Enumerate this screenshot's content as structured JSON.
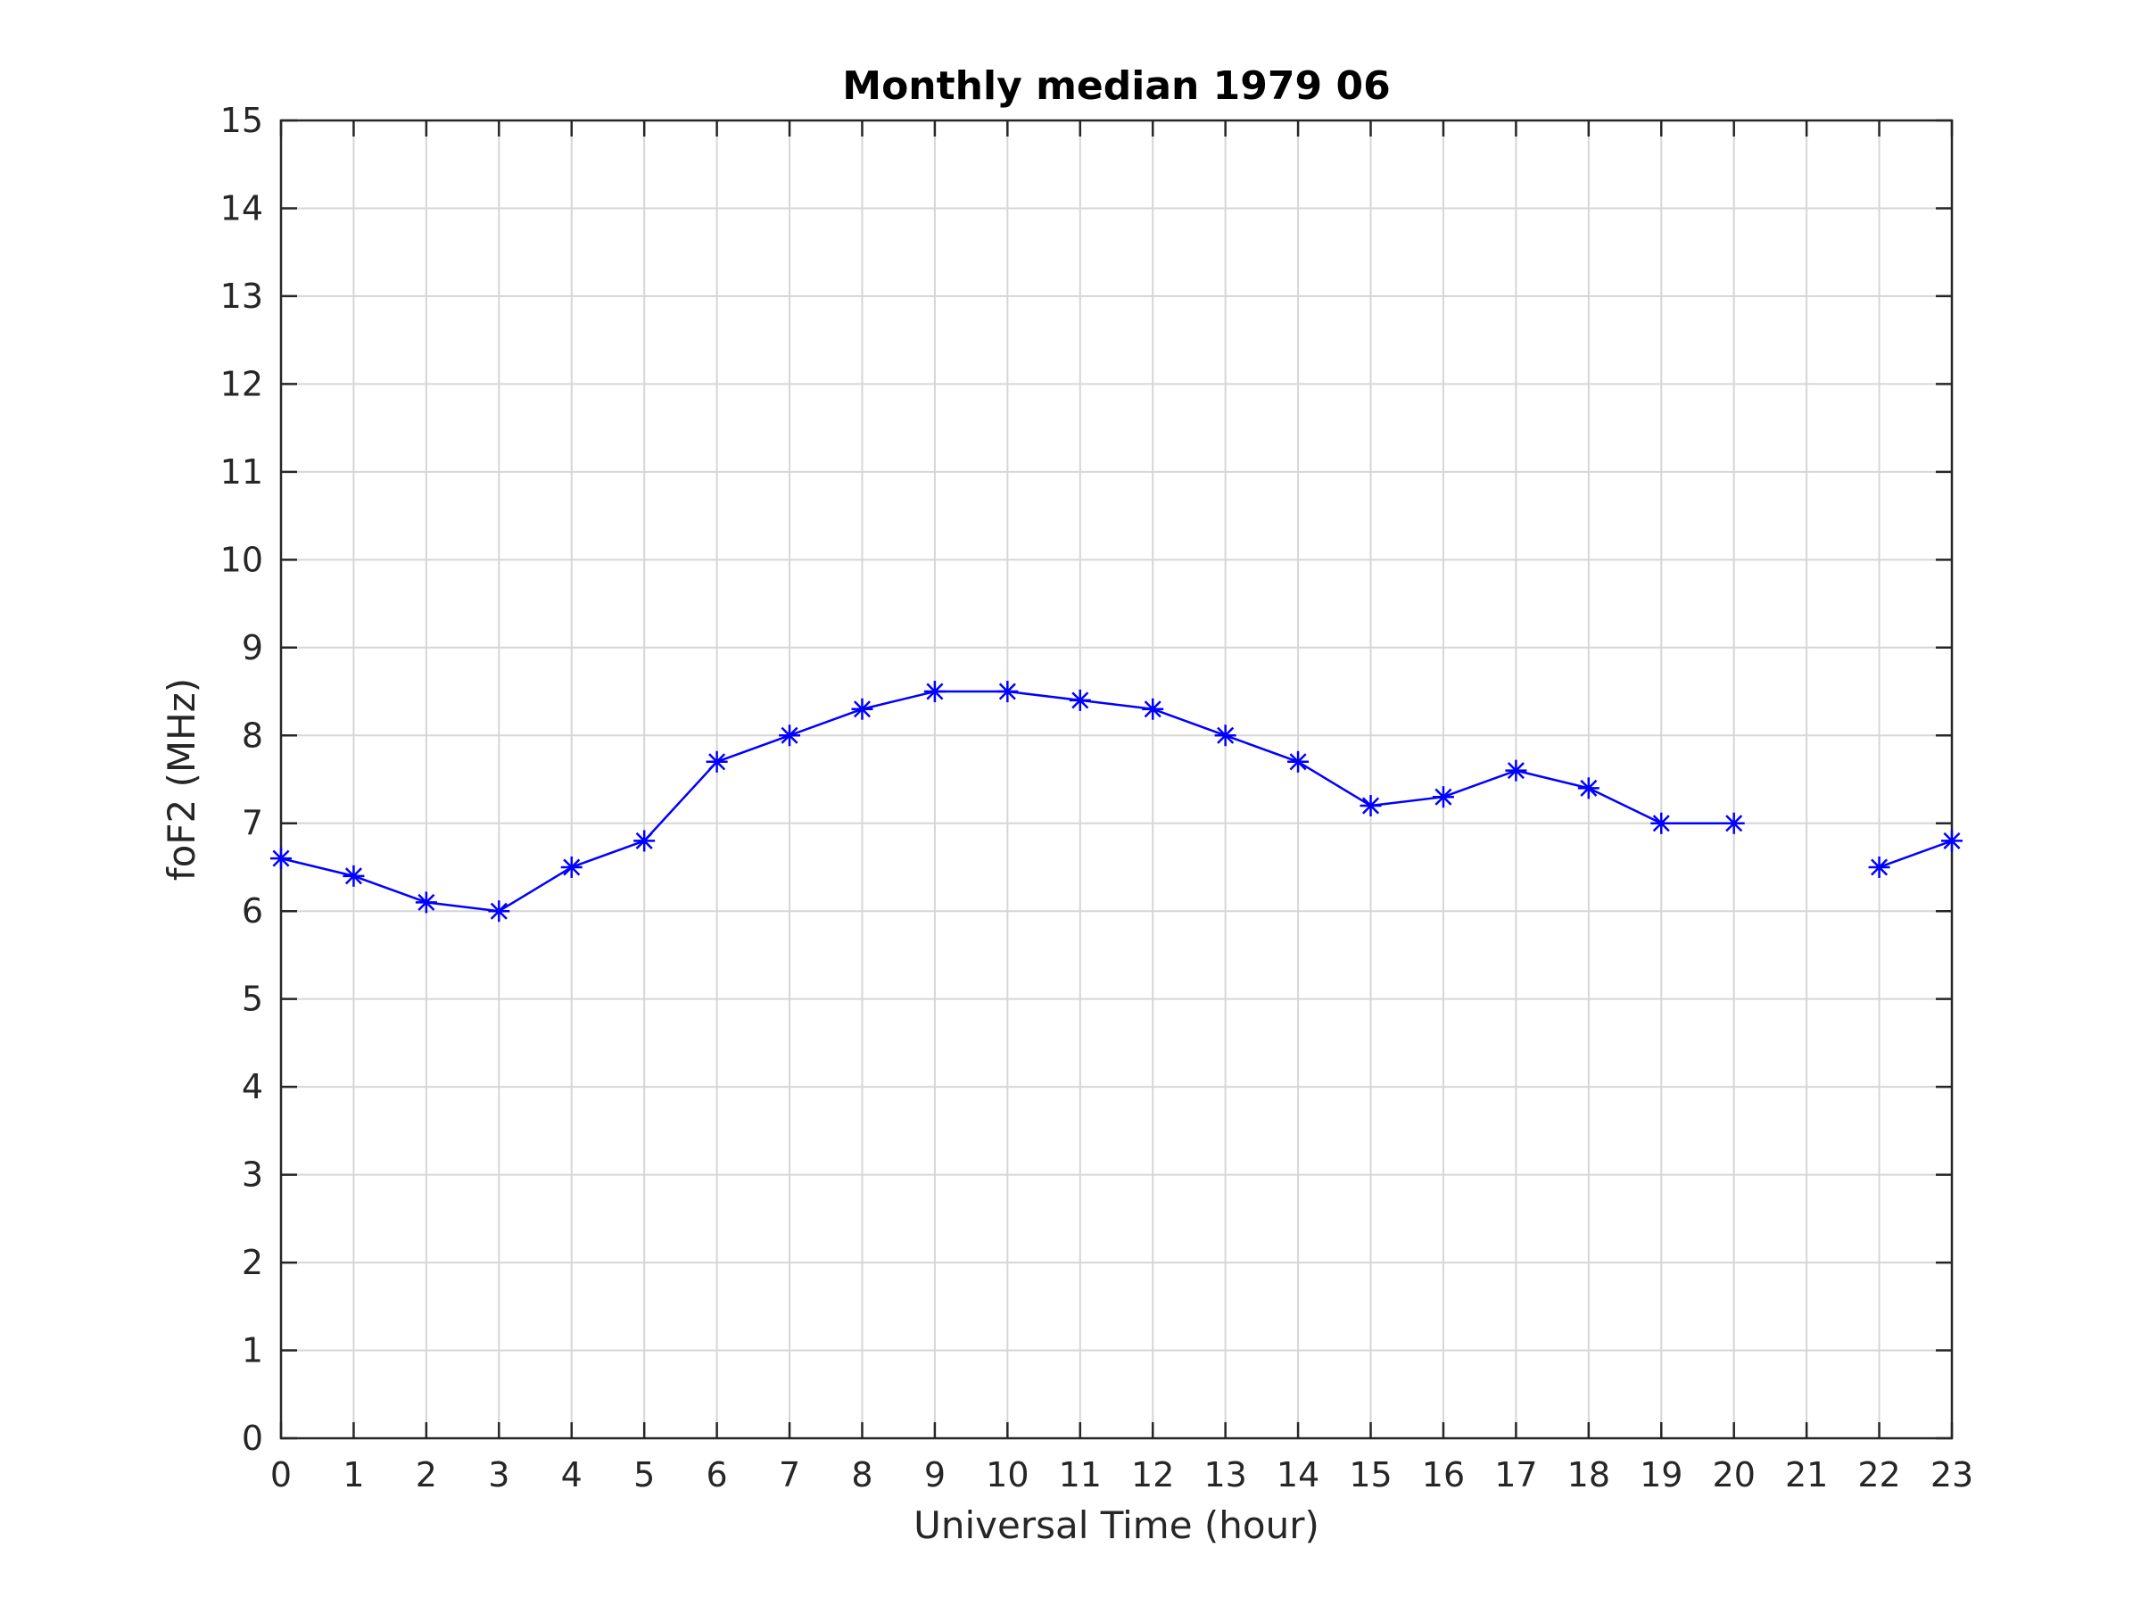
{
  "chart_data": {
    "type": "line",
    "title": "Monthly median 1979 06",
    "xlabel": "Universal Time (hour)",
    "ylabel": "foF2 (MHz)",
    "xlim": [
      0,
      23
    ],
    "ylim": [
      0,
      15
    ],
    "xticks": [
      0,
      1,
      2,
      3,
      4,
      5,
      6,
      7,
      8,
      9,
      10,
      11,
      12,
      13,
      14,
      15,
      16,
      17,
      18,
      19,
      20,
      21,
      22,
      23
    ],
    "yticks": [
      0,
      1,
      2,
      3,
      4,
      5,
      6,
      7,
      8,
      9,
      10,
      11,
      12,
      13,
      14,
      15
    ],
    "grid": true,
    "marker": "asterisk",
    "series": [
      {
        "color": "#0000ff",
        "x": [
          0,
          1,
          2,
          3,
          4,
          5,
          6,
          7,
          8,
          9,
          10,
          11,
          12,
          13,
          14,
          15,
          16,
          17,
          18,
          19,
          20,
          21,
          22,
          23
        ],
        "y": [
          6.6,
          6.4,
          6.1,
          6.0,
          6.5,
          6.8,
          7.7,
          8.0,
          8.3,
          8.5,
          8.5,
          8.4,
          8.3,
          8.0,
          7.7,
          7.2,
          7.3,
          7.6,
          7.4,
          7.0,
          7.0,
          null,
          6.5,
          6.8
        ]
      }
    ]
  }
}
